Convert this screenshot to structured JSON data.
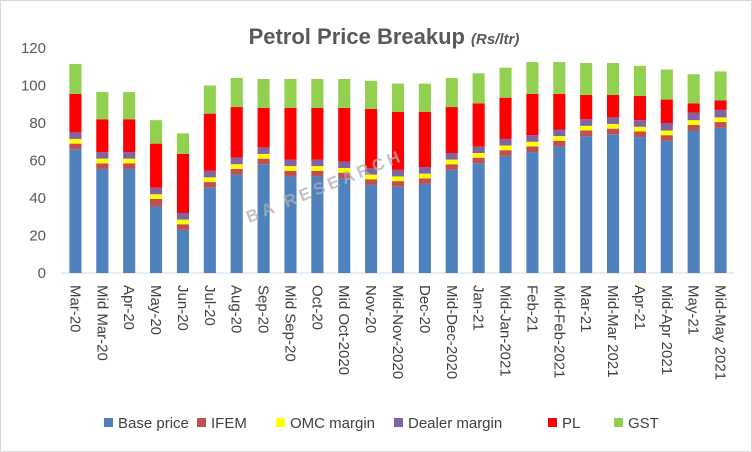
{
  "chart_data": {
    "type": "bar",
    "stacked": true,
    "title": "Petrol Price Breakup",
    "title_unit": "(Rs/ltr)",
    "ylim": [
      0,
      120
    ],
    "yticks": [
      0,
      20,
      40,
      60,
      80,
      100,
      120
    ],
    "grid": false,
    "legend_position": "bottom",
    "watermark": "BA RESEARCH",
    "categories": [
      "Mar-20",
      "Mid Mar-20",
      "Apr-20",
      "May-20",
      "Jun-20",
      "Jul-20",
      "Aug-20",
      "Sep-20",
      "Mid Sep-20",
      "Oct-20",
      "Mid Oct-2020",
      "Nov-20",
      "Mid-Nov-2020",
      "Dec-20",
      "Mid-Dec-2020",
      "Jan-21",
      "Mid-Jan-2021",
      "Feb-21",
      "Mid-Feb-2021",
      "Mar-21",
      "Mid-Mar 2021",
      "Apr-21",
      "Mid-Apr 2021",
      "May-21",
      "Mid-May 2021"
    ],
    "series": [
      {
        "name": "Base price",
        "color": "#4f81bd",
        "values": [
          66,
          55.5,
          55.5,
          35.5,
          23,
          45.5,
          52.5,
          58,
          51.5,
          51.5,
          50.5,
          47,
          46,
          47.5,
          55,
          58.5,
          62.5,
          64.5,
          67.5,
          73,
          74,
          72.5,
          70.5,
          76,
          77.5
        ]
      },
      {
        "name": "IFEM",
        "color": "#c0504d",
        "values": [
          3,
          3,
          3,
          4,
          3,
          3,
          3,
          3,
          3,
          3,
          3,
          3,
          3,
          3,
          3,
          3,
          3,
          3,
          3,
          3,
          3,
          3,
          3,
          3,
          3
        ]
      },
      {
        "name": "OMC margin",
        "color": "#ffff00",
        "values": [
          2.5,
          2.5,
          2.5,
          2.5,
          2.5,
          2.5,
          2.5,
          2.5,
          2.5,
          2.5,
          2.5,
          2.5,
          2.5,
          2.5,
          2.5,
          2.5,
          2.5,
          2.5,
          2.5,
          2.5,
          2.5,
          2.5,
          2.5,
          2.5,
          2.5
        ]
      },
      {
        "name": "Dealer margin",
        "color": "#8064a2",
        "values": [
          3.5,
          3.5,
          3.5,
          3.5,
          3.5,
          3.5,
          3.5,
          3.5,
          3.5,
          3.5,
          3.5,
          3.5,
          3.5,
          3.5,
          3.5,
          3.5,
          3.5,
          3.5,
          3.5,
          3.5,
          3.5,
          3.5,
          4,
          4,
          4
        ]
      },
      {
        "name": "PL",
        "color": "#ff0000",
        "values": [
          20.5,
          17.5,
          17.5,
          23.5,
          31.5,
          30.5,
          27,
          21,
          27.5,
          27.5,
          28.5,
          31.5,
          31,
          29.5,
          24.5,
          23,
          22,
          22,
          19,
          13,
          12,
          13,
          12.5,
          5,
          5
        ]
      },
      {
        "name": "GST",
        "color": "#92d050",
        "values": [
          16,
          14.5,
          14.5,
          12.5,
          11,
          15,
          15.5,
          15.5,
          15.5,
          15.5,
          15.5,
          15,
          15,
          15,
          15.5,
          16,
          16,
          17,
          17,
          17,
          17,
          16,
          16,
          15.5,
          15.5
        ]
      }
    ]
  }
}
